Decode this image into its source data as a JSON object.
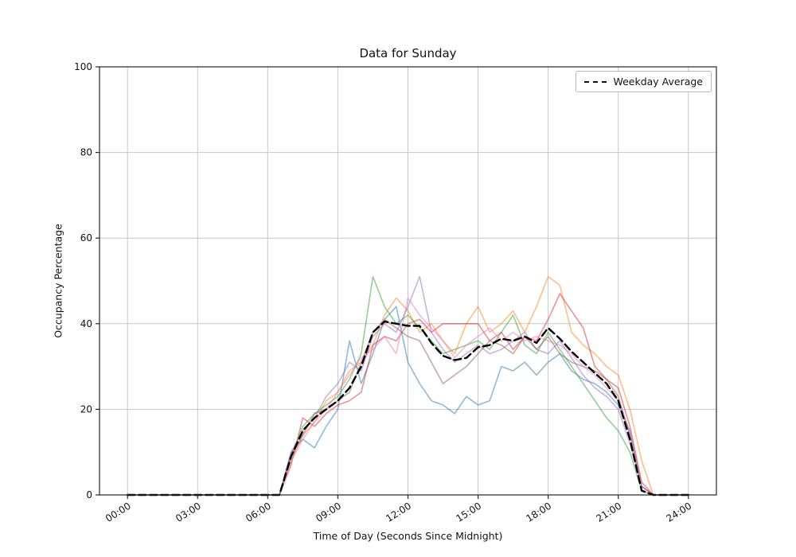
{
  "window": {
    "title": "Data for Sunday"
  },
  "chart_data": {
    "type": "line",
    "title": "Data for Sunday",
    "xlabel": "Time of Day (Seconds Since Midnight)",
    "ylabel": "Occupancy Percentage",
    "x_unit": "hours",
    "x_start": 0,
    "x_step": 0.5,
    "xlim": [
      -1.2,
      25.2
    ],
    "ylim": [
      0,
      100
    ],
    "x_ticks": [
      0,
      3,
      6,
      9,
      12,
      15,
      18,
      21,
      24
    ],
    "x_tick_labels": [
      "00:00",
      "03:00",
      "06:00",
      "09:00",
      "12:00",
      "15:00",
      "18:00",
      "21:00",
      "24:00"
    ],
    "y_ticks": [
      0,
      20,
      40,
      60,
      80,
      100
    ],
    "y_tick_labels": [
      "0",
      "20",
      "40",
      "60",
      "80",
      "100"
    ],
    "grid": true,
    "grid_color": "#c8c8c8",
    "spine_color": "#262626",
    "legend": {
      "position": "upper right",
      "entries": [
        "Weekday Average"
      ]
    },
    "series": [
      {
        "name": "line-1",
        "color": "#1f77b4",
        "alpha": 0.5,
        "dashed": false,
        "width": 1.6,
        "values": [
          0,
          0,
          0,
          0,
          0,
          0,
          0,
          0,
          0,
          0,
          0,
          0,
          0,
          0,
          10,
          13,
          11,
          16,
          20,
          36,
          26,
          33,
          41,
          44,
          31,
          26,
          22,
          21,
          19,
          23,
          21,
          22,
          30,
          29,
          31,
          28,
          31,
          33,
          29,
          27,
          26,
          24,
          21,
          15,
          2,
          0,
          0,
          0,
          0
        ]
      },
      {
        "name": "line-2",
        "color": "#ff7f0e",
        "alpha": 0.5,
        "dashed": false,
        "width": 1.6,
        "values": [
          0,
          0,
          0,
          0,
          0,
          0,
          0,
          0,
          0,
          0,
          0,
          0,
          0,
          0,
          8,
          14,
          17,
          22,
          24,
          29,
          31,
          35,
          42,
          46,
          43,
          38,
          40,
          36,
          33,
          40,
          44,
          38,
          40,
          43,
          38,
          44,
          51,
          49,
          38,
          35,
          33,
          30,
          28,
          20,
          8,
          0,
          0,
          0,
          0
        ]
      },
      {
        "name": "line-3",
        "color": "#2ca02c",
        "alpha": 0.5,
        "dashed": false,
        "width": 1.6,
        "values": [
          0,
          0,
          0,
          0,
          0,
          0,
          0,
          0,
          0,
          0,
          0,
          0,
          0,
          0,
          9,
          16,
          19,
          21,
          23,
          27,
          33,
          51,
          44,
          40,
          42,
          39,
          36,
          33,
          34,
          35,
          36,
          34,
          38,
          42,
          35,
          33,
          38,
          34,
          30,
          26,
          22,
          18,
          15,
          10,
          1,
          0,
          0,
          0,
          0
        ]
      },
      {
        "name": "line-4",
        "color": "#d62728",
        "alpha": 0.5,
        "dashed": false,
        "width": 1.6,
        "values": [
          0,
          0,
          0,
          0,
          0,
          0,
          0,
          0,
          0,
          0,
          0,
          0,
          0,
          0,
          7,
          18,
          16,
          19,
          21,
          22,
          24,
          35,
          37,
          36,
          40,
          41,
          38,
          40,
          40,
          40,
          40,
          36,
          38,
          34,
          37,
          36,
          41,
          47,
          43,
          39,
          30,
          27,
          25,
          16,
          3,
          0,
          0,
          0,
          0
        ]
      },
      {
        "name": "line-5",
        "color": "#9467bd",
        "alpha": 0.5,
        "dashed": false,
        "width": 1.6,
        "values": [
          0,
          0,
          0,
          0,
          0,
          0,
          0,
          0,
          0,
          0,
          0,
          0,
          0,
          0,
          10,
          15,
          18,
          23,
          26,
          31,
          29,
          37,
          40,
          38,
          44,
          51,
          38,
          34,
          31,
          33,
          35,
          33,
          34,
          36,
          38,
          34,
          33,
          36,
          32,
          28,
          25,
          23,
          20,
          12,
          2,
          0,
          0,
          0,
          0
        ]
      },
      {
        "name": "line-6",
        "color": "#8c564b",
        "alpha": 0.5,
        "dashed": false,
        "width": 1.6,
        "values": [
          0,
          0,
          0,
          0,
          0,
          0,
          0,
          0,
          0,
          0,
          0,
          0,
          0,
          0,
          9,
          14,
          19,
          20,
          22,
          24,
          31,
          38,
          41,
          39,
          37,
          36,
          31,
          26,
          28,
          30,
          33,
          36,
          35,
          33,
          37,
          34,
          37,
          33,
          31,
          30,
          29,
          27,
          23,
          14,
          2,
          0,
          0,
          0,
          0
        ]
      },
      {
        "name": "line-7",
        "color": "#e377c2",
        "alpha": 0.5,
        "dashed": false,
        "width": 1.6,
        "values": [
          0,
          0,
          0,
          0,
          0,
          0,
          0,
          0,
          0,
          0,
          0,
          0,
          0,
          0,
          8,
          13,
          17,
          20,
          24,
          28,
          32,
          34,
          37,
          33,
          46,
          42,
          39,
          36,
          32,
          35,
          37,
          39,
          36,
          38,
          36,
          37,
          36,
          35,
          33,
          30,
          28,
          25,
          22,
          14,
          2,
          0,
          0,
          0,
          0
        ]
      },
      {
        "name": "Weekday Average",
        "color": "#000000",
        "alpha": 1,
        "dashed": true,
        "width": 2.4,
        "values": [
          0,
          0,
          0,
          0,
          0,
          0,
          0,
          0,
          0,
          0,
          0,
          0,
          0,
          0,
          9,
          15,
          18,
          20,
          22,
          25,
          30,
          38,
          40.5,
          40,
          39.5,
          39.5,
          35.5,
          32.5,
          31.5,
          32,
          34.5,
          35,
          36.5,
          36,
          37,
          35.5,
          39,
          36.5,
          33.5,
          31,
          28.5,
          26,
          22,
          13,
          1,
          0,
          0,
          0,
          0
        ]
      }
    ]
  }
}
